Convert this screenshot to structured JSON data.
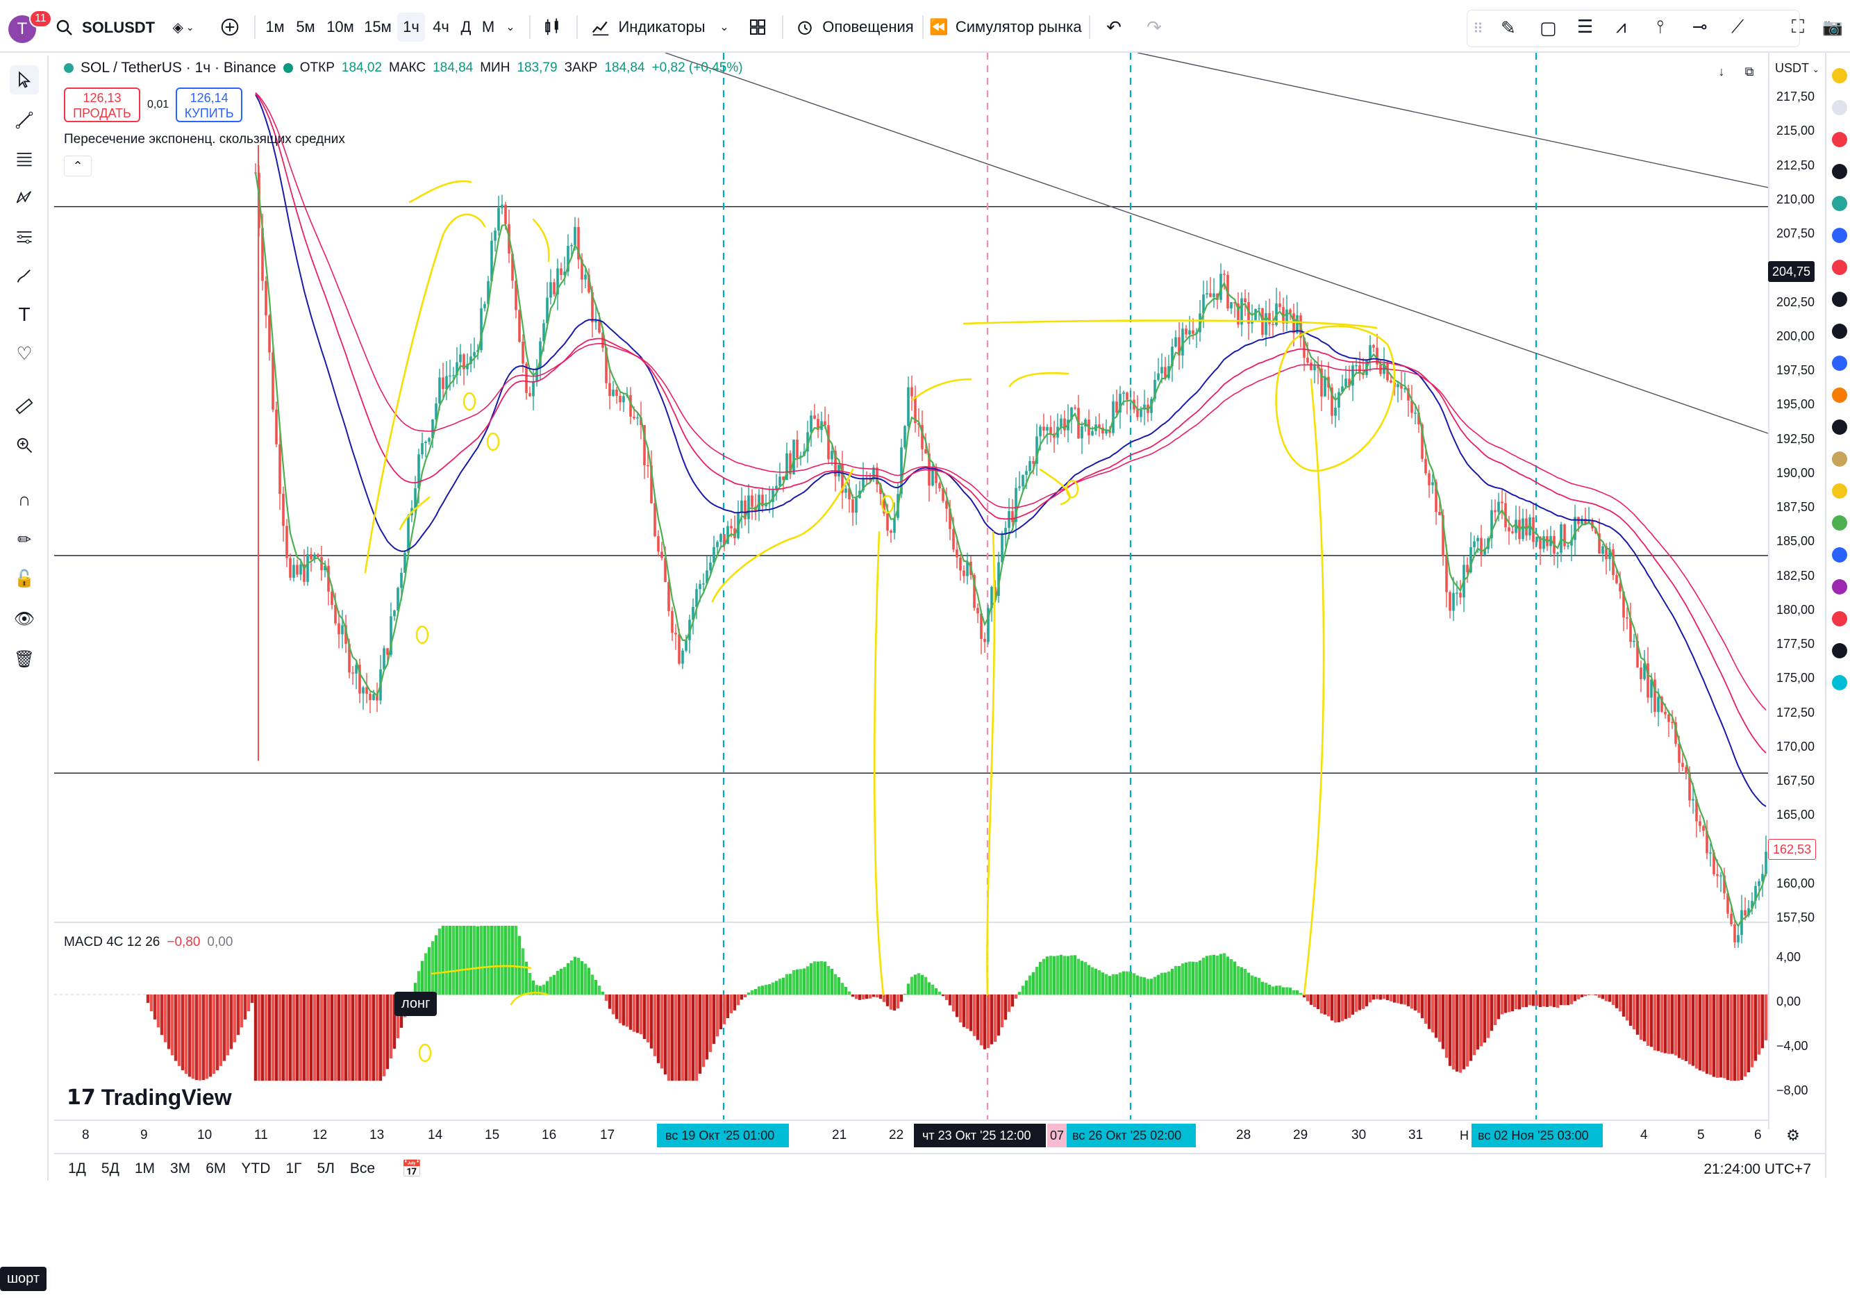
{
  "topbar": {
    "avatar_letter": "T",
    "notifications": "11",
    "symbol": "SOLUSDT",
    "timeframes": [
      "1м",
      "5м",
      "10м",
      "15м",
      "1ч",
      "4ч",
      "Д",
      "М"
    ],
    "active_timeframe": "1ч",
    "indicators_label": "Индикаторы",
    "alerts_label": "Оповещения",
    "replay_label": "Симулятор рынка"
  },
  "legend": {
    "title": "SOL / TetherUS · 1ч · Binance",
    "open_key": "ОТКР",
    "open_val": "184,02",
    "high_key": "МАКС",
    "high_val": "184,84",
    "low_key": "МИН",
    "low_val": "183,79",
    "close_key": "ЗАКР",
    "close_val": "184,84",
    "change": "+0,82 (+0,45%)"
  },
  "trade": {
    "sell_price": "126,13",
    "sell_label": "ПРОДАТЬ",
    "spread": "0,01",
    "buy_price": "126,14",
    "buy_label": "КУПИТЬ"
  },
  "indicator_label": "Пересечение экспоненц. скользящих средних",
  "macd": {
    "label": "MACD 4C 12 26",
    "value1": "−0,80",
    "value2": "0,00"
  },
  "branding": "TradingView",
  "tags": {
    "long": "лонг",
    "short": "шорт"
  },
  "price_scale": {
    "currency": "USDT",
    "labels": [
      "217,50",
      "215,00",
      "212,50",
      "210,00",
      "207,50",
      "202,50",
      "200,00",
      "197,50",
      "195,00",
      "192,50",
      "190,00",
      "187,50",
      "185,00",
      "182,50",
      "180,00",
      "177,50",
      "175,00",
      "172,50",
      "170,00",
      "167,50",
      "165,00",
      "160,00",
      "157,50"
    ],
    "current_badge": "204,75",
    "last_badge": "162,53",
    "macd_labels": [
      "4,00",
      "0,00",
      "−4,00",
      "−8,00"
    ]
  },
  "time_axis": {
    "labels": [
      "8",
      "9",
      "10",
      "11",
      "12",
      "13",
      "14",
      "15",
      "16",
      "17",
      "21",
      "22",
      "28",
      "29",
      "30",
      "31",
      "4",
      "5",
      "6"
    ],
    "badges": [
      "вс 19 Окт '25   01:00",
      "чт 23 Окт '25   12:00",
      "вс 26 Окт '25   02:00",
      "вс 02 Ноя '25   03:00"
    ],
    "partial_labels": [
      "07",
      "Н"
    ]
  },
  "bottom": {
    "ranges": [
      "1Д",
      "5Д",
      "1М",
      "3М",
      "6М",
      "YTD",
      "1Г",
      "5Л",
      "Все"
    ],
    "clock": "21:24:00 UTC+7"
  },
  "colors": {
    "bull": "#26a69a",
    "bear": "#ef5350",
    "ema_fast": "#4caf50",
    "ema_mid": "#1a1aaa",
    "ema_slow": "#e91e63",
    "annotation": "#f5e000",
    "vline": "#00acc1",
    "vline_pink": "#f48fb1"
  },
  "icons": [
    "search-icon",
    "chevron-down-icon",
    "plus-icon",
    "candles-icon",
    "indicators-icon",
    "layout-icon",
    "alert-icon",
    "replay-icon",
    "undo-icon",
    "redo-icon",
    "cursor-icon",
    "trendline-icon",
    "fib-icon",
    "pattern-icon",
    "measure-icon",
    "brush-icon",
    "text-icon",
    "heart-icon",
    "ruler-icon",
    "zoom-icon",
    "magnet-icon",
    "pencil-lock-icon",
    "lock-icon",
    "eye-icon",
    "trash-icon"
  ]
}
